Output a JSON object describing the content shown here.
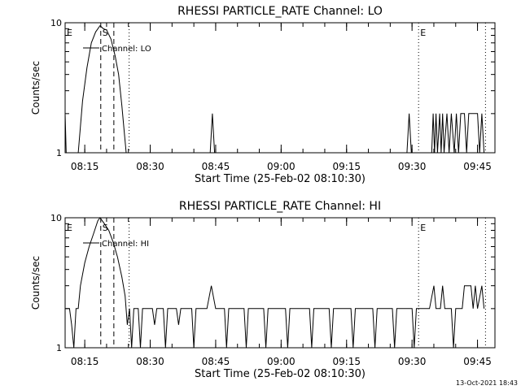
{
  "chart_data": [
    {
      "type": "line",
      "title": "RHESSI PARTICLE_RATE Channel: LO",
      "xlabel": "Start Time (25-Feb-02 08:10:30)",
      "ylabel": "Counts/sec",
      "yscale": "log",
      "ylim": [
        1,
        10
      ],
      "xlim": [
        "08:10:30",
        "09:49:00"
      ],
      "y_tick_labels": [
        "1",
        "10"
      ],
      "x_tick_labels": [
        "08:15",
        "08:30",
        "08:45",
        "09:00",
        "09:15",
        "09:30",
        "09:45"
      ],
      "legend": {
        "placement": "top-left",
        "entries": [
          {
            "label": "Channel: LO"
          }
        ]
      },
      "annotations": [
        {
          "text": "E",
          "x": "08:10:30"
        },
        {
          "text": "S",
          "x": "08:18:40"
        },
        {
          "text": "E",
          "x": "09:31:30"
        }
      ],
      "markers": [
        {
          "style": "dashed",
          "x": "08:18:40"
        },
        {
          "style": "dashed",
          "x": "08:21:40"
        },
        {
          "style": "dotted",
          "x": "08:25:10"
        },
        {
          "style": "dotted",
          "x": "09:31:30"
        },
        {
          "style": "dotted",
          "x": "09:46:50"
        }
      ],
      "series": [
        {
          "name": "Channel: LO",
          "points": [
            [
              "08:10:30",
              2
            ],
            [
              "08:10:45",
              1
            ],
            [
              "08:13:30",
              1
            ],
            [
              "08:14:30",
              2.5
            ],
            [
              "08:15:30",
              4.5
            ],
            [
              "08:16:30",
              7
            ],
            [
              "08:17:30",
              8.5
            ],
            [
              "08:18:30",
              9.5
            ],
            [
              "08:19:15",
              9
            ],
            [
              "08:20:00",
              8.8
            ],
            [
              "08:21:00",
              7.5
            ],
            [
              "08:22:00",
              5.5
            ],
            [
              "08:22:45",
              4
            ],
            [
              "08:23:30",
              2.3
            ],
            [
              "08:24:00",
              1.5
            ],
            [
              "08:24:30",
              1
            ],
            [
              "08:43:45",
              1
            ],
            [
              "08:44:15",
              2
            ],
            [
              "08:44:45",
              1
            ],
            [
              "09:28:50",
              1
            ],
            [
              "09:29:20",
              2
            ],
            [
              "09:29:50",
              1
            ],
            [
              "09:34:30",
              1
            ],
            [
              "09:34:50",
              2
            ],
            [
              "09:35:10",
              1
            ],
            [
              "09:35:30",
              2
            ],
            [
              "09:35:50",
              1
            ],
            [
              "09:36:20",
              2
            ],
            [
              "09:36:40",
              1
            ],
            [
              "09:37:00",
              2
            ],
            [
              "09:37:20",
              1
            ],
            [
              "09:38:00",
              2
            ],
            [
              "09:38:30",
              1
            ],
            [
              "09:39:00",
              2
            ],
            [
              "09:39:40",
              1
            ],
            [
              "09:40:10",
              2
            ],
            [
              "09:40:40",
              1
            ],
            [
              "09:41:10",
              2
            ],
            [
              "09:42:00",
              2
            ],
            [
              "09:42:30",
              1
            ],
            [
              "09:43:00",
              2
            ],
            [
              "09:44:30",
              2
            ],
            [
              "09:45:00",
              2
            ],
            [
              "09:45:30",
              1
            ],
            [
              "09:46:00",
              2
            ],
            [
              "09:46:30",
              1
            ]
          ]
        }
      ]
    },
    {
      "type": "line",
      "title": "RHESSI PARTICLE_RATE Channel: HI",
      "xlabel": "Start Time (25-Feb-02 08:10:30)",
      "ylabel": "Counts/sec",
      "yscale": "log",
      "ylim": [
        1,
        10
      ],
      "xlim": [
        "08:10:30",
        "09:49:00"
      ],
      "y_tick_labels": [
        "1",
        "10"
      ],
      "x_tick_labels": [
        "08:15",
        "08:30",
        "08:45",
        "09:00",
        "09:15",
        "09:30",
        "09:45"
      ],
      "legend": {
        "placement": "top-left",
        "entries": [
          {
            "label": "Channel: HI"
          }
        ]
      },
      "annotations": [
        {
          "text": "E",
          "x": "08:10:30"
        },
        {
          "text": "S",
          "x": "08:18:40"
        },
        {
          "text": "E",
          "x": "09:31:30"
        }
      ],
      "markers": [
        {
          "style": "dashed",
          "x": "08:18:40"
        },
        {
          "style": "dashed",
          "x": "08:21:40"
        },
        {
          "style": "dotted",
          "x": "08:25:10"
        },
        {
          "style": "dotted",
          "x": "09:31:30"
        },
        {
          "style": "dotted",
          "x": "09:46:50"
        }
      ],
      "series": [
        {
          "name": "Channel: HI",
          "points": [
            [
              "08:10:30",
              2
            ],
            [
              "08:11:30",
              2
            ],
            [
              "08:12:00",
              1.5
            ],
            [
              "08:12:30",
              1
            ],
            [
              "08:13:00",
              2
            ],
            [
              "08:13:30",
              2
            ],
            [
              "08:14:00",
              3
            ],
            [
              "08:15:00",
              4.5
            ],
            [
              "08:16:00",
              6
            ],
            [
              "08:17:00",
              7.5
            ],
            [
              "08:18:00",
              9.5
            ],
            [
              "08:18:30",
              10
            ],
            [
              "08:19:30",
              9
            ],
            [
              "08:20:30",
              8
            ],
            [
              "08:21:30",
              6.5
            ],
            [
              "08:22:30",
              5
            ],
            [
              "08:23:30",
              3.5
            ],
            [
              "08:24:15",
              2.5
            ],
            [
              "08:24:45",
              1.5
            ],
            [
              "08:25:15",
              2
            ],
            [
              "08:25:45",
              1
            ],
            [
              "08:26:15",
              2
            ],
            [
              "08:27:15",
              2
            ],
            [
              "08:27:45",
              1
            ],
            [
              "08:28:15",
              2
            ],
            [
              "08:30:30",
              2
            ],
            [
              "08:31:00",
              1.5
            ],
            [
              "08:31:30",
              2
            ],
            [
              "08:33:00",
              2
            ],
            [
              "08:33:30",
              1
            ],
            [
              "08:34:00",
              2
            ],
            [
              "08:36:00",
              2
            ],
            [
              "08:36:30",
              1.5
            ],
            [
              "08:37:00",
              2
            ],
            [
              "08:39:30",
              2
            ],
            [
              "08:40:00",
              1
            ],
            [
              "08:40:30",
              2
            ],
            [
              "08:43:00",
              2
            ],
            [
              "08:44:00",
              3
            ],
            [
              "08:45:00",
              2
            ],
            [
              "08:47:00",
              2
            ],
            [
              "08:47:30",
              1
            ],
            [
              "08:48:00",
              2
            ],
            [
              "08:51:30",
              2
            ],
            [
              "08:52:00",
              1
            ],
            [
              "08:52:30",
              2
            ],
            [
              "08:56:00",
              2
            ],
            [
              "08:56:30",
              1
            ],
            [
              "08:57:00",
              2
            ],
            [
              "09:01:00",
              2
            ],
            [
              "09:01:30",
              1
            ],
            [
              "09:02:00",
              2
            ],
            [
              "09:06:30",
              2
            ],
            [
              "09:07:00",
              1
            ],
            [
              "09:07:30",
              2
            ],
            [
              "09:11:00",
              2
            ],
            [
              "09:11:30",
              1
            ],
            [
              "09:12:00",
              2
            ],
            [
              "09:16:00",
              2
            ],
            [
              "09:16:30",
              1
            ],
            [
              "09:17:00",
              2
            ],
            [
              "09:21:00",
              2
            ],
            [
              "09:21:30",
              1
            ],
            [
              "09:22:00",
              2
            ],
            [
              "09:25:30",
              2
            ],
            [
              "09:26:00",
              1
            ],
            [
              "09:26:30",
              2
            ],
            [
              "09:30:00",
              2
            ],
            [
              "09:30:30",
              1
            ],
            [
              "09:31:00",
              2
            ],
            [
              "09:34:00",
              2
            ],
            [
              "09:35:00",
              3
            ],
            [
              "09:35:30",
              2
            ],
            [
              "09:36:30",
              2
            ],
            [
              "09:37:00",
              3
            ],
            [
              "09:37:30",
              2
            ],
            [
              "09:39:00",
              2
            ],
            [
              "09:39:30",
              1
            ],
            [
              "09:40:00",
              2
            ],
            [
              "09:41:30",
              2
            ],
            [
              "09:42:00",
              3
            ],
            [
              "09:43:30",
              3
            ],
            [
              "09:44:00",
              2
            ],
            [
              "09:44:30",
              3
            ],
            [
              "09:45:00",
              2
            ],
            [
              "09:46:00",
              3
            ],
            [
              "09:46:30",
              2
            ]
          ]
        }
      ]
    }
  ],
  "footer": {
    "timestamp": "13-Oct-2021 18:43"
  }
}
